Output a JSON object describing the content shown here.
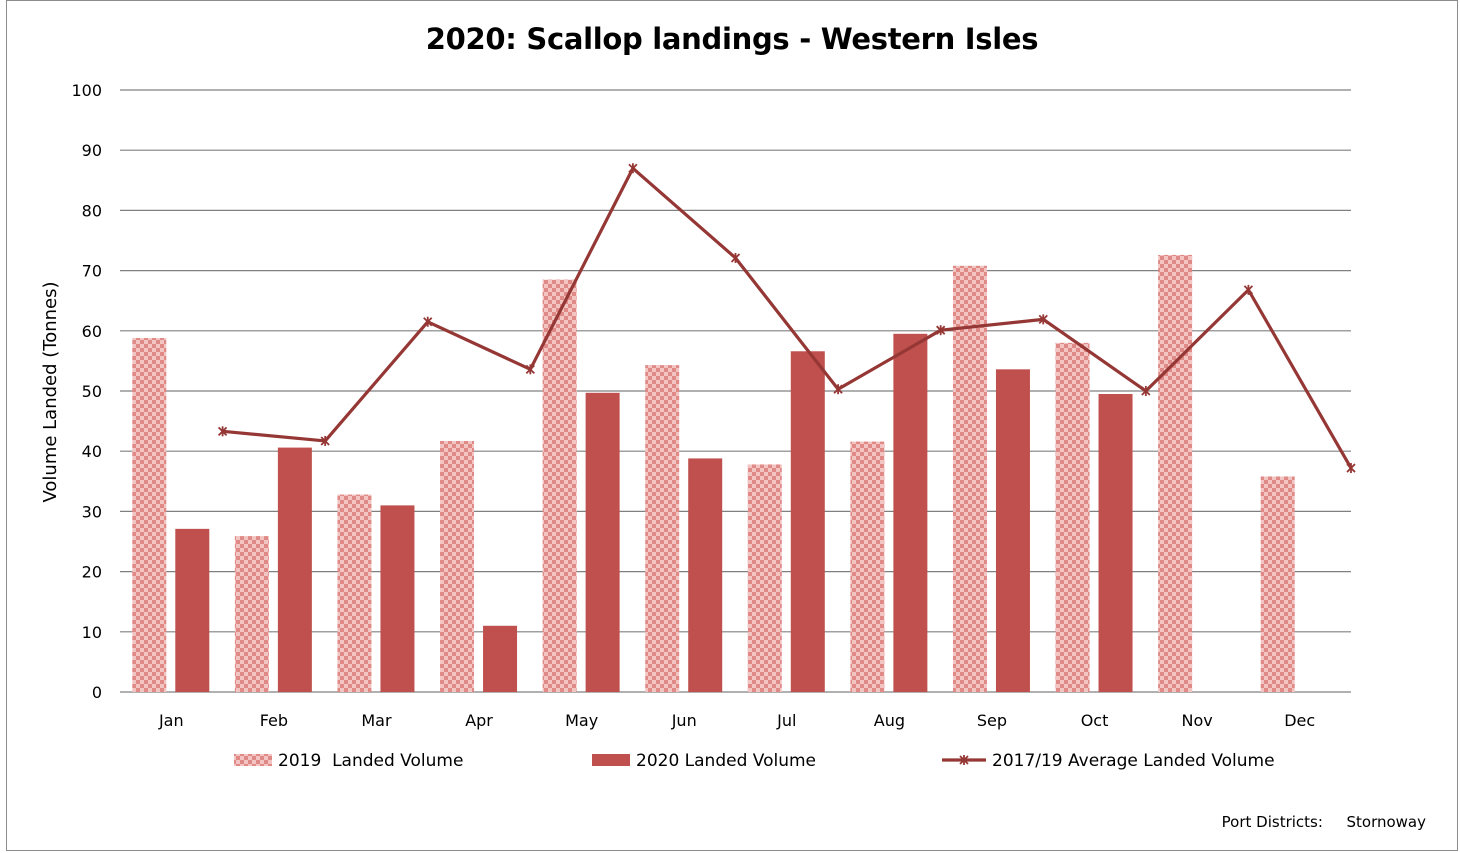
{
  "colors": {
    "bar_2020": "#c0504d",
    "bar_2019_light": "#f2c4c2",
    "bar_2019_dark": "#e08a87",
    "line_avg": "#953735",
    "grid": "#808080"
  },
  "footnote": {
    "label": "Port Districts:",
    "value": "Stornoway"
  },
  "chart_data": {
    "type": "bar",
    "title": "2020: Scallop landings - Western Isles",
    "xlabel": "",
    "ylabel": "Volume Landed (Tonnes)",
    "ylim": [
      0,
      100
    ],
    "yticks": [
      0,
      10,
      20,
      30,
      40,
      50,
      60,
      70,
      80,
      90,
      100
    ],
    "grid": true,
    "legend_position": "bottom",
    "categories": [
      "Jan",
      "Feb",
      "Mar",
      "Apr",
      "May",
      "Jun",
      "Jul",
      "Aug",
      "Sep",
      "Oct",
      "Nov",
      "Dec"
    ],
    "series": [
      {
        "name": "2019  Landed Volume",
        "kind": "bar",
        "pattern": "checkered",
        "values": [
          58.8,
          25.9,
          32.8,
          41.7,
          68.5,
          54.3,
          37.8,
          41.6,
          70.8,
          58.0,
          72.6,
          35.8
        ]
      },
      {
        "name": "2020 Landed Volume",
        "kind": "bar",
        "pattern": "solid",
        "values": [
          27.1,
          40.6,
          31.0,
          11.0,
          49.7,
          38.8,
          56.6,
          59.5,
          53.6,
          49.5,
          null,
          null
        ]
      },
      {
        "name": "2017/19 Average Landed Volume",
        "kind": "line",
        "marker": "star",
        "values": [
          43.3,
          41.7,
          61.5,
          53.6,
          87.0,
          72.1,
          50.3,
          60.1,
          61.9,
          50.0,
          66.8,
          37.2
        ]
      }
    ]
  }
}
